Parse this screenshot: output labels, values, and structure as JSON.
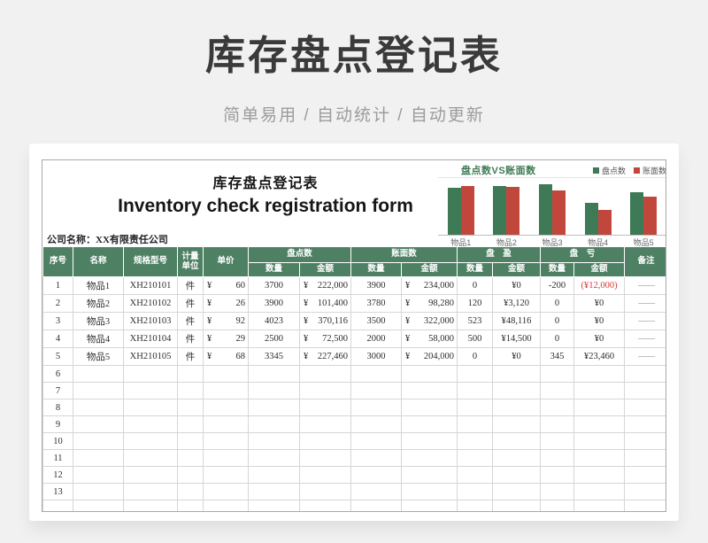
{
  "page": {
    "title": "库存盘点登记表",
    "subtitle": "简单易用 / 自动统计 / 自动更新"
  },
  "sheet": {
    "title_cn": "库存盘点登记表",
    "title_en": "Inventory check registration form",
    "company": "公司名称：XX有限责任公司",
    "currency": "¥",
    "columns": {
      "seq": "序号",
      "name": "名称",
      "model": "规格型号",
      "unit_line1": "计量",
      "unit_line2": "单位",
      "price": "单价",
      "group_pandian": "盘点数",
      "group_zhangmian": "账面数",
      "group_panying": "盘　盈",
      "group_pankui": "盘　亏",
      "qty": "数量",
      "amt": "金额",
      "note": "备注"
    },
    "rows": [
      {
        "seq": "1",
        "name": "物品1",
        "model": "XH210101",
        "unit": "件",
        "price": "60",
        "pd_qty": "3700",
        "pd_amt": "222,000",
        "zm_qty": "3900",
        "zm_amt": "234,000",
        "py_qty": "0",
        "py_amt": "¥0",
        "pk_qty": "-200",
        "pk_amt": "(¥12,000)",
        "pk_red": true,
        "note": "——"
      },
      {
        "seq": "2",
        "name": "物品2",
        "model": "XH210102",
        "unit": "件",
        "price": "26",
        "pd_qty": "3900",
        "pd_amt": "101,400",
        "zm_qty": "3780",
        "zm_amt": "98,280",
        "py_qty": "120",
        "py_amt": "¥3,120",
        "pk_qty": "0",
        "pk_amt": "¥0",
        "pk_red": false,
        "note": "——"
      },
      {
        "seq": "3",
        "name": "物品3",
        "model": "XH210103",
        "unit": "件",
        "price": "92",
        "pd_qty": "4023",
        "pd_amt": "370,116",
        "zm_qty": "3500",
        "zm_amt": "322,000",
        "py_qty": "523",
        "py_amt": "¥48,116",
        "pk_qty": "0",
        "pk_amt": "¥0",
        "pk_red": false,
        "note": "——"
      },
      {
        "seq": "4",
        "name": "物品4",
        "model": "XH210104",
        "unit": "件",
        "price": "29",
        "pd_qty": "2500",
        "pd_amt": "72,500",
        "zm_qty": "2000",
        "zm_amt": "58,000",
        "py_qty": "500",
        "py_amt": "¥14,500",
        "pk_qty": "0",
        "pk_amt": "¥0",
        "pk_red": false,
        "note": "——"
      },
      {
        "seq": "5",
        "name": "物品5",
        "model": "XH210105",
        "unit": "件",
        "price": "68",
        "pd_qty": "3345",
        "pd_amt": "227,460",
        "zm_qty": "3000",
        "zm_amt": "204,000",
        "py_qty": "0",
        "py_amt": "¥0",
        "pk_qty": "345",
        "pk_amt": "¥23,460",
        "pk_red": false,
        "note": "——"
      }
    ],
    "empty_rows": [
      "6",
      "7",
      "8",
      "9",
      "10",
      "11",
      "12",
      "13",
      ""
    ]
  },
  "chart_data": {
    "type": "bar",
    "title": "盘点数VS账面数",
    "categories": [
      "物品1",
      "物品2",
      "物品3",
      "物品4",
      "物品5"
    ],
    "series": [
      {
        "name": "盘点数",
        "color": "#3e7a55",
        "values": [
          3700,
          3900,
          4023,
          2500,
          3345
        ]
      },
      {
        "name": "账面数",
        "color": "#c1473c",
        "values": [
          3900,
          3780,
          3500,
          2000,
          3000
        ]
      }
    ],
    "ylim": [
      0,
      4500
    ],
    "xlabel": "",
    "ylabel": "",
    "grid": false,
    "legend_position": "top-right"
  },
  "colors": {
    "header_green": "#4e8164",
    "chart_green": "#3e7a55",
    "chart_red": "#c1473c",
    "negative_red": "#d43c36"
  }
}
